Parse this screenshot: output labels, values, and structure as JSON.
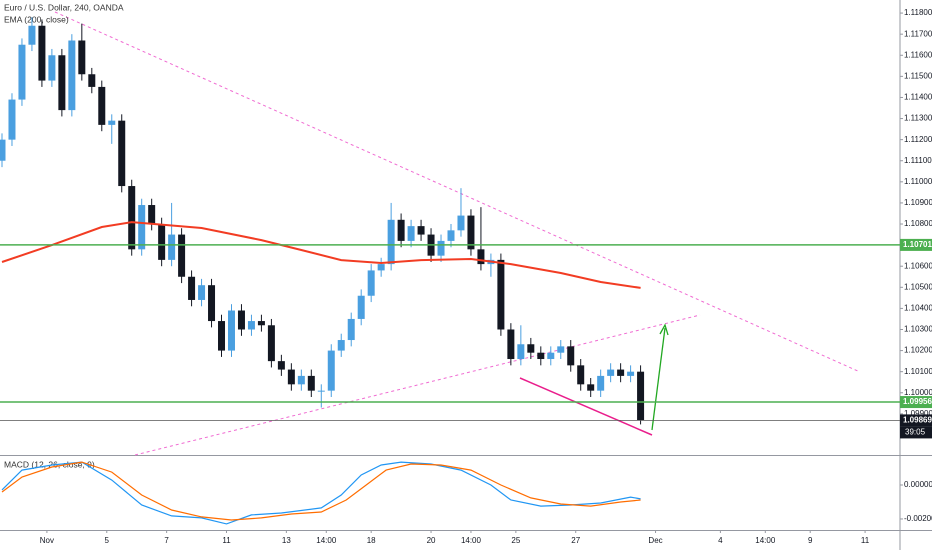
{
  "chart_data": [
    {
      "type": "candlestick",
      "title": "Euro / U.S. Dollar, 240, OANDA",
      "xlim": [
        0,
        180
      ],
      "ylim": [
        1.09705,
        1.11862
      ],
      "yticks": [
        {
          "value": 1.099,
          "label": "1.09900"
        },
        {
          "value": 1.1,
          "label": "1.10000"
        },
        {
          "value": 1.101,
          "label": "1.10100"
        },
        {
          "value": 1.102,
          "label": "1.10200"
        },
        {
          "value": 1.103,
          "label": "1.10300"
        },
        {
          "value": 1.104,
          "label": "1.10400"
        },
        {
          "value": 1.105,
          "label": "1.10500"
        },
        {
          "value": 1.106,
          "label": "1.10600"
        },
        {
          "value": 1.107,
          "label": "1.10700"
        },
        {
          "value": 1.108,
          "label": "1.10800"
        },
        {
          "value": 1.109,
          "label": "1.10900"
        },
        {
          "value": 1.11,
          "label": "1.11000"
        },
        {
          "value": 1.111,
          "label": "1.11100"
        },
        {
          "value": 1.112,
          "label": "1.11200"
        },
        {
          "value": 1.113,
          "label": "1.11300"
        },
        {
          "value": 1.114,
          "label": "1.11400"
        },
        {
          "value": 1.115,
          "label": "1.11500"
        },
        {
          "value": 1.116,
          "label": "1.11600"
        },
        {
          "value": 1.117,
          "label": "1.11700"
        },
        {
          "value": 1.118,
          "label": "1.11800"
        }
      ],
      "x": [
        0,
        2,
        4,
        6,
        8,
        10,
        12,
        14,
        16,
        18,
        20,
        22,
        24,
        26,
        28,
        30,
        32,
        34,
        36,
        38,
        40,
        42,
        44,
        46,
        48,
        50,
        52,
        54,
        56,
        58,
        60,
        62,
        64,
        66,
        68,
        70,
        72,
        74,
        76,
        78,
        80,
        82,
        84,
        86,
        88,
        90,
        92,
        94,
        96,
        98,
        100,
        102,
        104,
        106,
        108,
        110,
        112,
        114,
        116,
        118,
        120,
        122,
        124,
        126,
        128
      ],
      "open": [
        1.111,
        1.112,
        1.1139,
        1.1165,
        1.1174,
        1.1148,
        1.116,
        1.1134,
        1.1167,
        1.1151,
        1.1145,
        1.1127,
        1.1129,
        1.1098,
        1.1068,
        1.1089,
        1.108,
        1.1063,
        1.1075,
        1.1055,
        1.1044,
        1.1051,
        1.1034,
        1.102,
        1.1039,
        1.103,
        1.1034,
        1.1032,
        1.1015,
        1.1011,
        1.1004,
        1.1008,
        1.1001,
        1.1001,
        1.102,
        1.1025,
        1.1035,
        1.1046,
        1.1058,
        1.1061,
        1.1082,
        1.1072,
        1.1079,
        1.1075,
        1.1065,
        1.1072,
        1.1077,
        1.1084,
        1.1068,
        1.1061,
        1.1063,
        1.103,
        1.1016,
        1.1023,
        1.1019,
        1.1016,
        1.1019,
        1.1022,
        1.1013,
        1.1004,
        1.1001,
        1.1008,
        1.1011,
        1.1008,
        1.101
      ],
      "high": [
        1.1123,
        1.1142,
        1.1168,
        1.1178,
        1.1177,
        1.1163,
        1.1163,
        1.117,
        1.1175,
        1.1154,
        1.1148,
        1.1132,
        1.1132,
        1.1101,
        1.1092,
        1.1092,
        1.1083,
        1.109,
        1.1078,
        1.1058,
        1.1054,
        1.1054,
        1.1037,
        1.1042,
        1.1042,
        1.1037,
        1.1037,
        1.1035,
        1.1018,
        1.1014,
        1.1011,
        1.1011,
        1.1004,
        1.1023,
        1.1028,
        1.1038,
        1.1049,
        1.1061,
        1.1064,
        1.109,
        1.1085,
        1.1082,
        1.1082,
        1.1078,
        1.1075,
        1.108,
        1.1097,
        1.1087,
        1.1088,
        1.1066,
        1.1066,
        1.1033,
        1.1032,
        1.1026,
        1.1022,
        1.1022,
        1.1025,
        1.1025,
        1.1016,
        1.1007,
        1.1011,
        1.1014,
        1.1014,
        1.1013,
        1.1013
      ],
      "low": [
        1.1107,
        1.1117,
        1.1136,
        1.1162,
        1.1145,
        1.1145,
        1.1131,
        1.1131,
        1.1148,
        1.1142,
        1.1124,
        1.1118,
        1.1095,
        1.1065,
        1.1065,
        1.1077,
        1.106,
        1.106,
        1.1052,
        1.1041,
        1.1041,
        1.1031,
        1.1017,
        1.1017,
        1.1027,
        1.1027,
        1.1029,
        1.1012,
        1.1008,
        1.1001,
        1.1001,
        1.0998,
        1.0993,
        1.0998,
        1.1017,
        1.1022,
        1.1032,
        1.1043,
        1.1055,
        1.1058,
        1.1069,
        1.1069,
        1.1072,
        1.1062,
        1.1062,
        1.1069,
        1.1074,
        1.1065,
        1.1058,
        1.1055,
        1.1027,
        1.1013,
        1.1013,
        1.1016,
        1.1013,
        1.1013,
        1.1016,
        1.101,
        1.1001,
        1.0998,
        1.0998,
        1.1005,
        1.1005,
        1.1005,
        1.0985
      ],
      "close": [
        1.112,
        1.1139,
        1.1165,
        1.1174,
        1.1148,
        1.116,
        1.1134,
        1.1167,
        1.1151,
        1.1145,
        1.1127,
        1.1129,
        1.1098,
        1.1068,
        1.1089,
        1.108,
        1.1063,
        1.1075,
        1.1055,
        1.1044,
        1.1051,
        1.1034,
        1.102,
        1.1039,
        1.103,
        1.1034,
        1.1032,
        1.1015,
        1.1011,
        1.1004,
        1.1008,
        1.1001,
        1.1001,
        1.102,
        1.1025,
        1.1035,
        1.1046,
        1.1058,
        1.1061,
        1.1082,
        1.1072,
        1.1079,
        1.1075,
        1.1065,
        1.1072,
        1.1077,
        1.1084,
        1.1068,
        1.1061,
        1.1063,
        1.103,
        1.1016,
        1.1023,
        1.1019,
        1.1016,
        1.1019,
        1.1022,
        1.1013,
        1.1004,
        1.1001,
        1.1008,
        1.1011,
        1.1008,
        1.101,
        1.0987
      ],
      "up_color": "#4a9fe0",
      "down_color": "#131722",
      "ema": {
        "name": "EMA (200, close)",
        "color": "#f23c23",
        "x": [
          0,
          10,
          20,
          26,
          40,
          52,
          60,
          68,
          76,
          84,
          94,
          102,
          112,
          120,
          128
        ],
        "values": [
          1.1062,
          1.107,
          1.10786,
          1.10809,
          1.10781,
          1.10724,
          1.10677,
          1.10629,
          1.10615,
          1.10629,
          1.10634,
          1.1061,
          1.10568,
          1.10525,
          1.10497
        ]
      },
      "price_tags": [
        {
          "value": 1.10701,
          "label": "1.10701",
          "color": "#4caf50"
        },
        {
          "value": 1.09956,
          "label": "1.09956",
          "color": "#4caf50"
        },
        {
          "value": 1.09869,
          "label": "1.09869",
          "color": "#131722"
        }
      ],
      "countdown": "39:05"
    },
    {
      "type": "line",
      "title": "MACD (12, 26, close, 9)",
      "xlim": [
        0,
        180
      ],
      "ylim": [
        -0.00265,
        0.00165
      ],
      "yticks": [
        {
          "value": 0,
          "label": "0.00000"
        },
        {
          "value": -0.002,
          "label": "-0.00200"
        }
      ],
      "xticks": [
        {
          "value": 9,
          "label": "Nov"
        },
        {
          "value": 21,
          "label": "5"
        },
        {
          "value": 33,
          "label": "7"
        },
        {
          "value": 45,
          "label": "11"
        },
        {
          "value": 57,
          "label": "13"
        },
        {
          "value": 65,
          "label": "14:00"
        },
        {
          "value": 74,
          "label": "18"
        },
        {
          "value": 86,
          "label": "20"
        },
        {
          "value": 94,
          "label": "14:00"
        },
        {
          "value": 103,
          "label": "25"
        },
        {
          "value": 115,
          "label": "27"
        },
        {
          "value": 131,
          "label": "Dec"
        },
        {
          "value": 144,
          "label": "4"
        },
        {
          "value": 153,
          "label": "14:00"
        },
        {
          "value": 162,
          "label": "9"
        },
        {
          "value": 173,
          "label": "11"
        }
      ],
      "series": [
        {
          "color": "#2196f3",
          "x": [
            0,
            4,
            10,
            16,
            22,
            28,
            34,
            40,
            45,
            50,
            56,
            64,
            68,
            72,
            76,
            80,
            86,
            92,
            98,
            102,
            108,
            114,
            120,
            126,
            128
          ],
          "values": [
            -0.00029,
            0.00088,
            0.00118,
            0.00135,
            0.00029,
            -0.00118,
            -0.00182,
            -0.00194,
            -0.00229,
            -0.00176,
            -0.00165,
            -0.00135,
            -0.00059,
            0.00059,
            0.00118,
            0.00135,
            0.00124,
            0.00088,
            0,
            -0.00088,
            -0.00124,
            -0.00118,
            -0.00106,
            -0.00071,
            -0.00082
          ]
        },
        {
          "color": "#ff6d00",
          "x": [
            0,
            4,
            10,
            16,
            22,
            28,
            34,
            40,
            46,
            52,
            58,
            64,
            69,
            73,
            77,
            82,
            88,
            94,
            100,
            106,
            112,
            118,
            124,
            128
          ],
          "values": [
            -0.00041,
            0.00047,
            0.00106,
            0.00135,
            0.00076,
            -0.00059,
            -0.00147,
            -0.00188,
            -0.00206,
            -0.00194,
            -0.00171,
            -0.00159,
            -0.00088,
            0,
            0.00088,
            0.00124,
            0.00118,
            0.00088,
            0,
            -0.00076,
            -0.00112,
            -0.00124,
            -0.001,
            -0.00088
          ]
        }
      ]
    }
  ]
}
